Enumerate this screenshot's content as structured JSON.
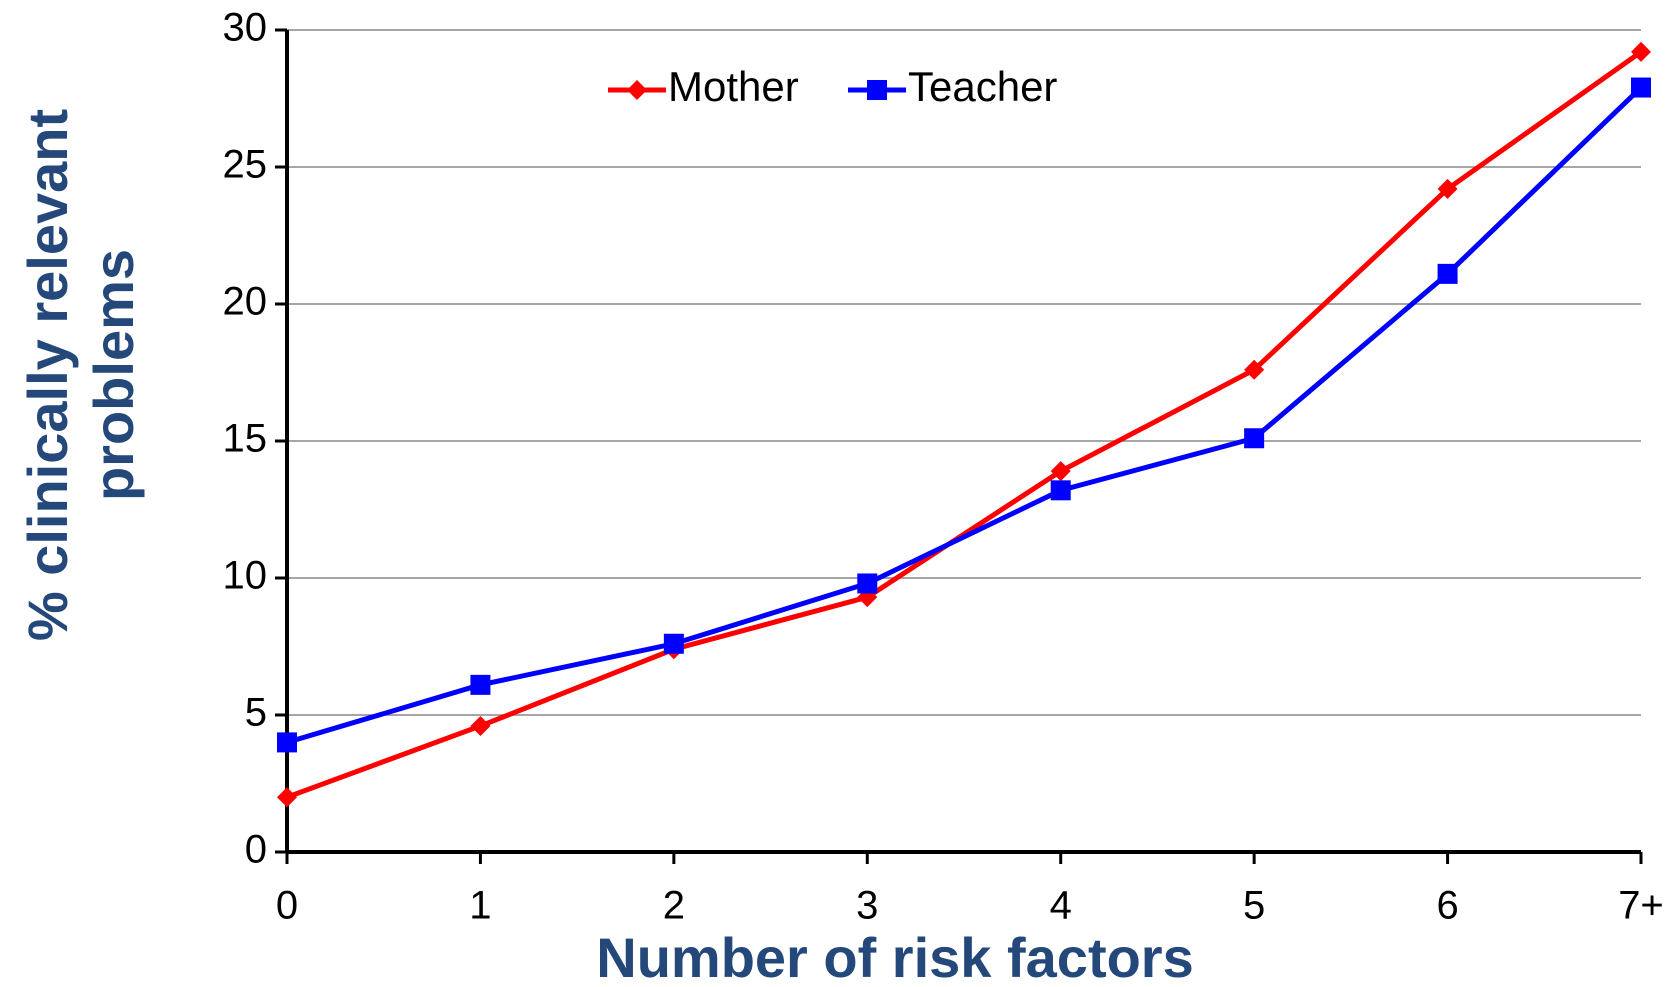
{
  "chart_data": {
    "type": "line",
    "xlabel": "Number of risk factors",
    "ylabel": [
      "% clinically relevant",
      "problems"
    ],
    "categories": [
      "0",
      "1",
      "2",
      "3",
      "4",
      "5",
      "6",
      "7+"
    ],
    "series": [
      {
        "name": "Mother",
        "color": "#ff0000",
        "marker": "diamond",
        "values": [
          2.0,
          4.6,
          7.4,
          9.3,
          13.9,
          17.6,
          24.2,
          29.2
        ]
      },
      {
        "name": "Teacher",
        "color": "#0000ff",
        "marker": "square",
        "values": [
          4.0,
          6.1,
          7.6,
          9.8,
          13.2,
          15.1,
          21.1,
          27.9
        ]
      }
    ],
    "ylim": [
      0,
      30
    ],
    "yticks": [
      0,
      5,
      10,
      15,
      20,
      25,
      30
    ],
    "grid": true
  }
}
